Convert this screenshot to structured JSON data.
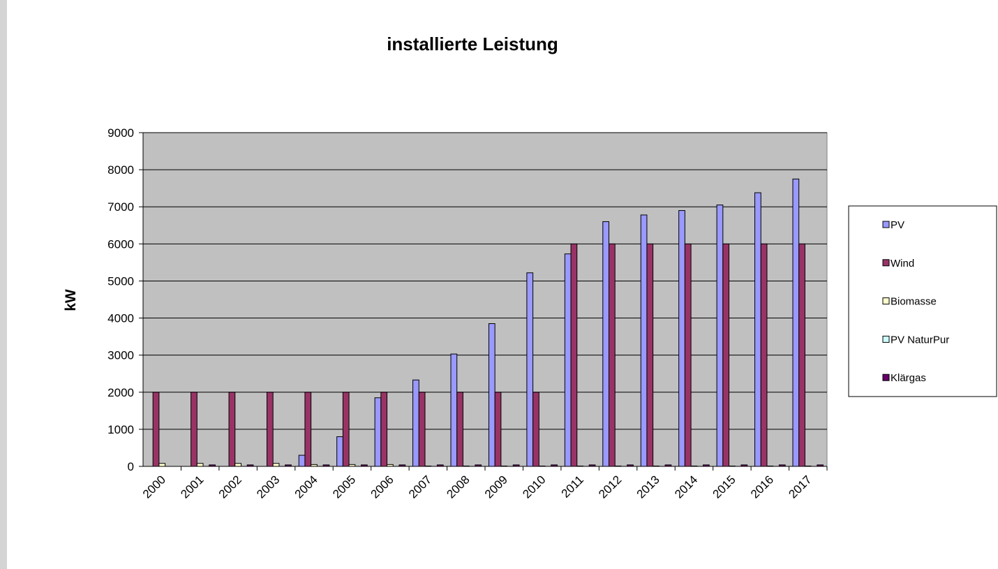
{
  "chart_data": {
    "type": "bar",
    "title": "installierte Leistung",
    "y_label": "kW",
    "categories": [
      "2000",
      "2001",
      "2002",
      "2003",
      "2004",
      "2005",
      "2006",
      "2007",
      "2008",
      "2009",
      "2010",
      "2011",
      "2012",
      "2013",
      "2014",
      "2015",
      "2016",
      "2017"
    ],
    "series": [
      {
        "name": "PV",
        "color": "#9999ff",
        "values": [
          0,
          0,
          0,
          0,
          300,
          800,
          1850,
          2330,
          3030,
          3850,
          5220,
          5730,
          6600,
          6780,
          6900,
          7050,
          7380,
          7750
        ]
      },
      {
        "name": "Wind",
        "color": "#993366",
        "values": [
          2000,
          2000,
          2000,
          2000,
          2000,
          2000,
          2000,
          2000,
          2000,
          2000,
          2000,
          6000,
          6000,
          6000,
          6000,
          6000,
          6000,
          6000
        ]
      },
      {
        "name": "Biomasse",
        "color": "#ffffcc",
        "values": [
          80,
          80,
          80,
          80,
          50,
          50,
          50,
          10,
          10,
          10,
          10,
          10,
          10,
          10,
          10,
          10,
          10,
          10
        ]
      },
      {
        "name": "PV NaturPur",
        "color": "#ccffff",
        "values": [
          0,
          0,
          0,
          0,
          0,
          0,
          0,
          0,
          0,
          0,
          0,
          0,
          0,
          0,
          0,
          0,
          0,
          0
        ]
      },
      {
        "name": "Klärgas",
        "color": "#660066",
        "values": [
          0,
          40,
          40,
          40,
          40,
          40,
          40,
          40,
          40,
          40,
          40,
          40,
          40,
          40,
          40,
          40,
          40,
          40
        ]
      }
    ],
    "ylim": [
      0,
      9000
    ],
    "yticks": [
      0,
      1000,
      2000,
      3000,
      4000,
      5000,
      6000,
      7000,
      8000,
      9000
    ],
    "grid": true,
    "plot_background": "#c0c0c0",
    "legend": "right"
  }
}
